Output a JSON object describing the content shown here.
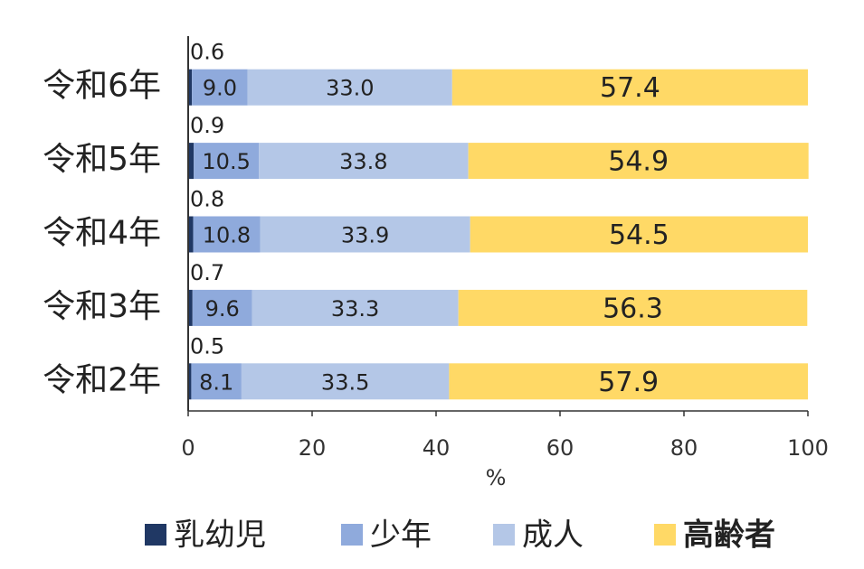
{
  "chart_data": {
    "type": "bar",
    "orientation": "horizontal",
    "stacked": true,
    "categories": [
      "令和6年",
      "令和5年",
      "令和4年",
      "令和3年",
      "令和2年"
    ],
    "series": [
      {
        "name": "乳幼児",
        "color": "#203864",
        "values": [
          0.6,
          0.9,
          0.8,
          0.7,
          0.5
        ],
        "value_labels": [
          "0.6",
          "0.9",
          "0.8",
          "0.7",
          "0.5"
        ]
      },
      {
        "name": "少年",
        "color": "#8faadc",
        "values": [
          9.0,
          10.5,
          10.8,
          9.6,
          8.1
        ],
        "value_labels": [
          "9.0",
          "10.5",
          "10.8",
          "9.6",
          "8.1"
        ]
      },
      {
        "name": "成人",
        "color": "#b4c7e7",
        "values": [
          33.0,
          33.8,
          33.9,
          33.3,
          33.5
        ],
        "value_labels": [
          "33.0",
          "33.8",
          "33.9",
          "33.3",
          "33.5"
        ]
      },
      {
        "name": "高齢者",
        "color": "#ffd966",
        "values": [
          57.4,
          54.9,
          54.5,
          56.3,
          57.9
        ],
        "value_labels": [
          "57.4",
          "54.9",
          "54.5",
          "56.3",
          "57.9"
        ]
      }
    ],
    "x_label": "%",
    "xlim": [
      0,
      100
    ],
    "xticks": [
      0,
      20,
      40,
      60,
      80,
      100
    ],
    "grid": false,
    "legend": "bottom"
  }
}
